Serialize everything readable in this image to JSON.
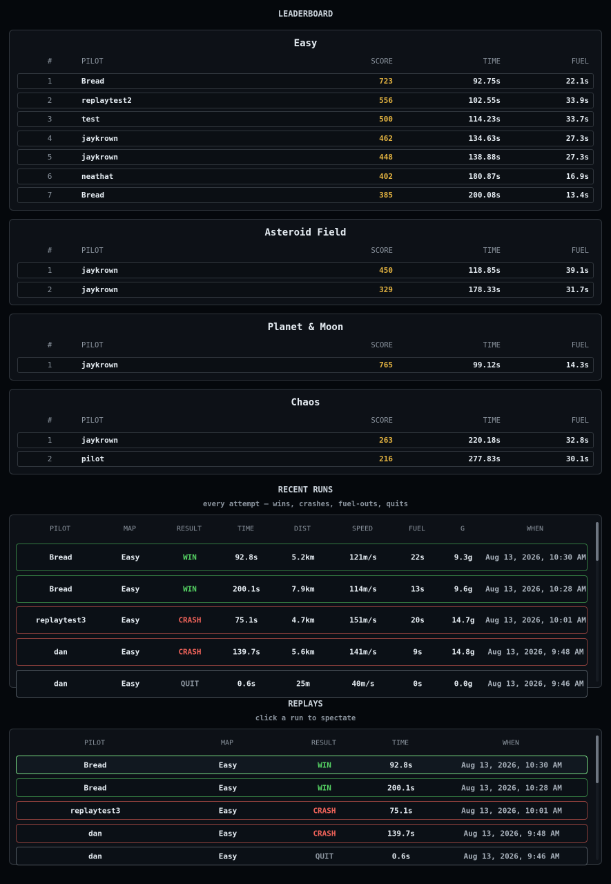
{
  "title": "LEADERBOARD",
  "leaderboards": [
    {
      "name": "Easy",
      "columns": [
        "#",
        "PILOT",
        "SCORE",
        "TIME",
        "FUEL"
      ],
      "rows": [
        [
          1,
          "Bread",
          723,
          "92.75s",
          "22.1s"
        ],
        [
          2,
          "replaytest2",
          556,
          "102.55s",
          "33.9s"
        ],
        [
          3,
          "test",
          500,
          "114.23s",
          "33.7s"
        ],
        [
          4,
          "jaykrown",
          462,
          "134.63s",
          "27.3s"
        ],
        [
          5,
          "jaykrown",
          448,
          "138.88s",
          "27.3s"
        ],
        [
          6,
          "neathat",
          402,
          "180.87s",
          "16.9s"
        ],
        [
          7,
          "Bread",
          385,
          "200.08s",
          "13.4s"
        ]
      ]
    },
    {
      "name": "Asteroid Field",
      "columns": [
        "#",
        "PILOT",
        "SCORE",
        "TIME",
        "FUEL"
      ],
      "rows": [
        [
          1,
          "jaykrown",
          450,
          "118.85s",
          "39.1s"
        ],
        [
          2,
          "jaykrown",
          329,
          "178.33s",
          "31.7s"
        ]
      ]
    },
    {
      "name": "Planet & Moon",
      "columns": [
        "#",
        "PILOT",
        "SCORE",
        "TIME",
        "FUEL"
      ],
      "rows": [
        [
          1,
          "jaykrown",
          765,
          "99.12s",
          "14.3s"
        ]
      ]
    },
    {
      "name": "Chaos",
      "columns": [
        "#",
        "PILOT",
        "SCORE",
        "TIME",
        "FUEL"
      ],
      "rows": [
        [
          1,
          "jaykrown",
          263,
          "220.18s",
          "32.8s"
        ],
        [
          2,
          "pilot",
          216,
          "277.83s",
          "30.1s"
        ]
      ]
    }
  ],
  "recent_runs": {
    "title": "RECENT RUNS",
    "subtitle": "every attempt — wins, crashes, fuel-outs, quits",
    "columns": [
      "PILOT",
      "MAP",
      "RESULT",
      "TIME",
      "DIST",
      "SPEED",
      "FUEL",
      "G",
      "WHEN"
    ],
    "rows": [
      {
        "cells": [
          "Bread",
          "Easy",
          "WIN",
          "92.8s",
          "5.2km",
          "121m/s",
          "22s",
          "9.3g",
          "Aug 13, 2026, 10:30 AM"
        ],
        "color": "#56d364"
      },
      {
        "cells": [
          "Bread",
          "Easy",
          "WIN",
          "200.1s",
          "7.9km",
          "114m/s",
          "13s",
          "9.6g",
          "Aug 13, 2026, 10:28 AM"
        ],
        "color": "#56d364"
      },
      {
        "cells": [
          "replaytest3",
          "Easy",
          "CRASH",
          "75.1s",
          "4.7km",
          "151m/s",
          "20s",
          "14.7g",
          "Aug 13, 2026, 10:01 AM"
        ],
        "color": "#f0635a"
      },
      {
        "cells": [
          "dan",
          "Easy",
          "CRASH",
          "139.7s",
          "5.6km",
          "141m/s",
          "9s",
          "14.8g",
          "Aug 13, 2026, 9:48 AM"
        ],
        "color": "#f0635a"
      },
      {
        "cells": [
          "dan",
          "Easy",
          "QUIT",
          "0.6s",
          "25m",
          "40m/s",
          "0s",
          "0.0g",
          "Aug 13, 2026, 9:46 AM"
        ],
        "color": "#8b949e"
      }
    ]
  },
  "replays": {
    "title": "REPLAYS",
    "subtitle": "click a run to spectate",
    "columns": [
      "PILOT",
      "MAP",
      "RESULT",
      "TIME",
      "WHEN"
    ],
    "rows": [
      {
        "cells": [
          "Bread",
          "Easy",
          "WIN",
          "92.8s",
          "Aug 13, 2026, 10:30 AM"
        ],
        "color": "#56d364",
        "selected": true
      },
      {
        "cells": [
          "Bread",
          "Easy",
          "WIN",
          "200.1s",
          "Aug 13, 2026, 10:28 AM"
        ],
        "color": "#56d364"
      },
      {
        "cells": [
          "replaytest3",
          "Easy",
          "CRASH",
          "75.1s",
          "Aug 13, 2026, 10:01 AM"
        ],
        "color": "#f0635a"
      },
      {
        "cells": [
          "dan",
          "Easy",
          "CRASH",
          "139.7s",
          "Aug 13, 2026, 9:48 AM"
        ],
        "color": "#f0635a"
      },
      {
        "cells": [
          "dan",
          "Easy",
          "QUIT",
          "0.6s",
          "Aug 13, 2026, 9:46 AM"
        ],
        "color": "#8b949e"
      }
    ]
  }
}
